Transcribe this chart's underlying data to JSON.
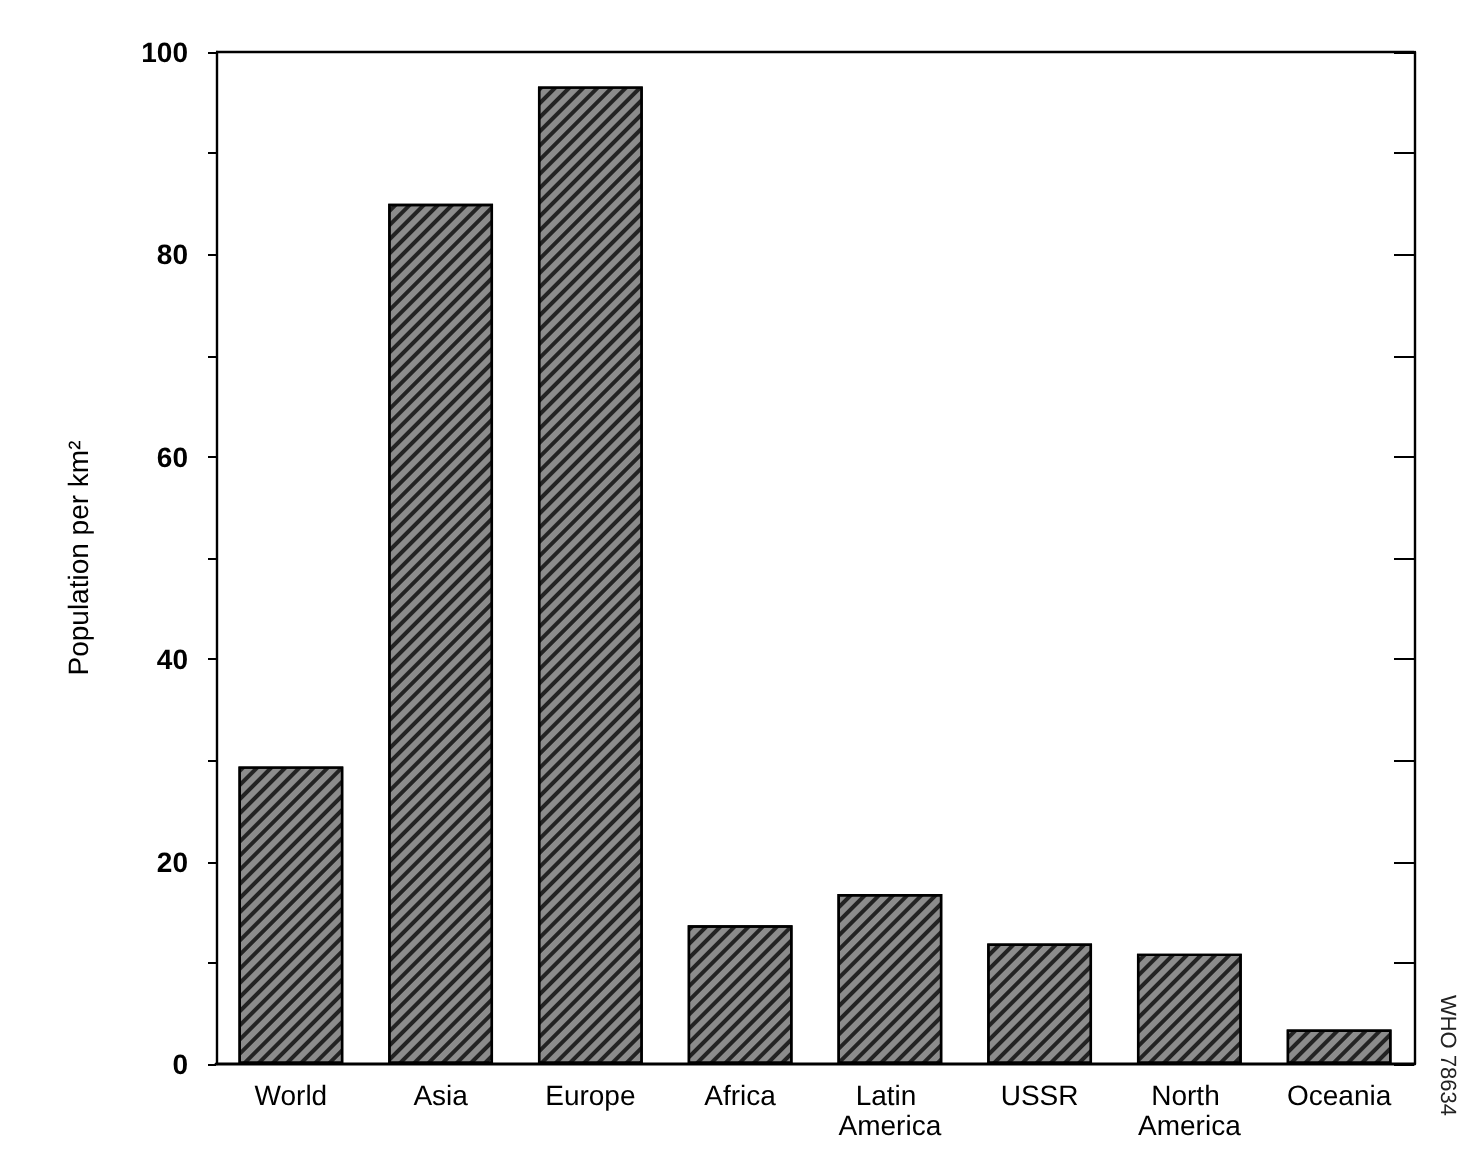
{
  "chart_data": {
    "type": "bar",
    "ylabel": "Population per km²",
    "categories": [
      "World",
      "Asia",
      "Europe",
      "Africa",
      "Latin America",
      "USSR",
      "North America",
      "Oceania"
    ],
    "values": [
      29.4,
      85,
      96.6,
      13.7,
      16.8,
      11.9,
      10.9,
      3.4
    ],
    "color": "#8c8c8c",
    "ylim": [
      0,
      100
    ],
    "yticks": [
      0,
      {
        "value": 10,
        "label": null
      },
      20,
      {
        "value": 30,
        "label": null
      },
      40,
      {
        "value": 50,
        "label": null
      },
      60,
      {
        "value": 70,
        "label": null
      },
      80,
      {
        "value": 90,
        "label": null
      },
      100
    ],
    "grid": false,
    "annotations": [
      "WHO 78634"
    ]
  }
}
